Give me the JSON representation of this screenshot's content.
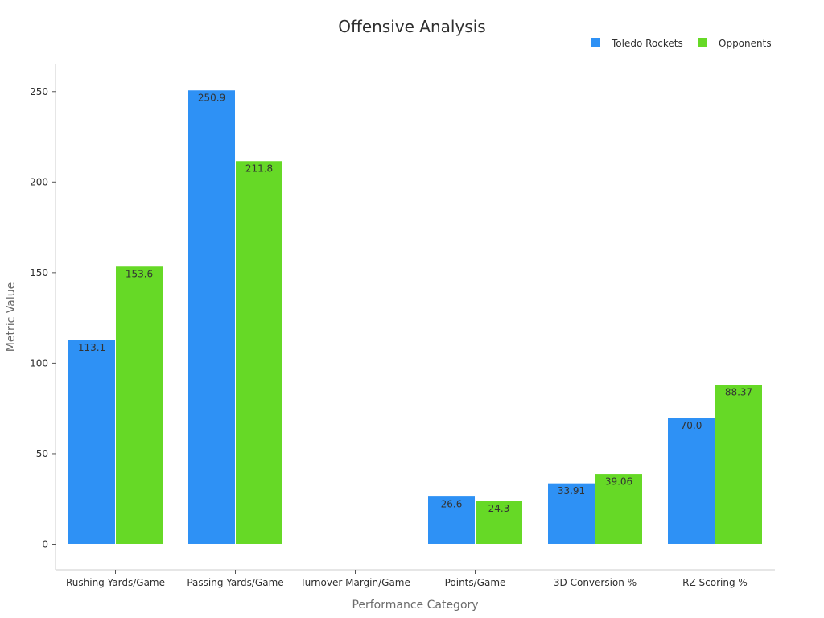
{
  "chart_data": {
    "type": "bar",
    "title": "Offensive Analysis",
    "xlabel": "Performance Category",
    "ylabel": "Metric Value",
    "categories": [
      "Rushing Yards/Game",
      "Passing Yards/Game",
      "Turnover Margin/Game",
      "Points/Game",
      "3D Conversion %",
      "RZ Scoring %"
    ],
    "series": [
      {
        "name": "Toledo Rockets",
        "color": "#2e91f5",
        "values": [
          113.1,
          250.9,
          -0.2,
          26.6,
          33.91,
          70.0
        ],
        "labels": [
          "113.1",
          "250.9",
          "",
          "26.6",
          "33.91",
          "70.0"
        ]
      },
      {
        "name": "Opponents",
        "color": "#66d926",
        "values": [
          153.6,
          211.8,
          0.3,
          24.3,
          39.06,
          88.37
        ],
        "labels": [
          "153.6",
          "211.8",
          "",
          "24.3",
          "39.06",
          "88.37"
        ]
      }
    ],
    "ylim": [
      -14,
      265
    ],
    "yticks": [
      0,
      50,
      100,
      150,
      200,
      250
    ],
    "legend_position": "top-right",
    "grid": false
  }
}
